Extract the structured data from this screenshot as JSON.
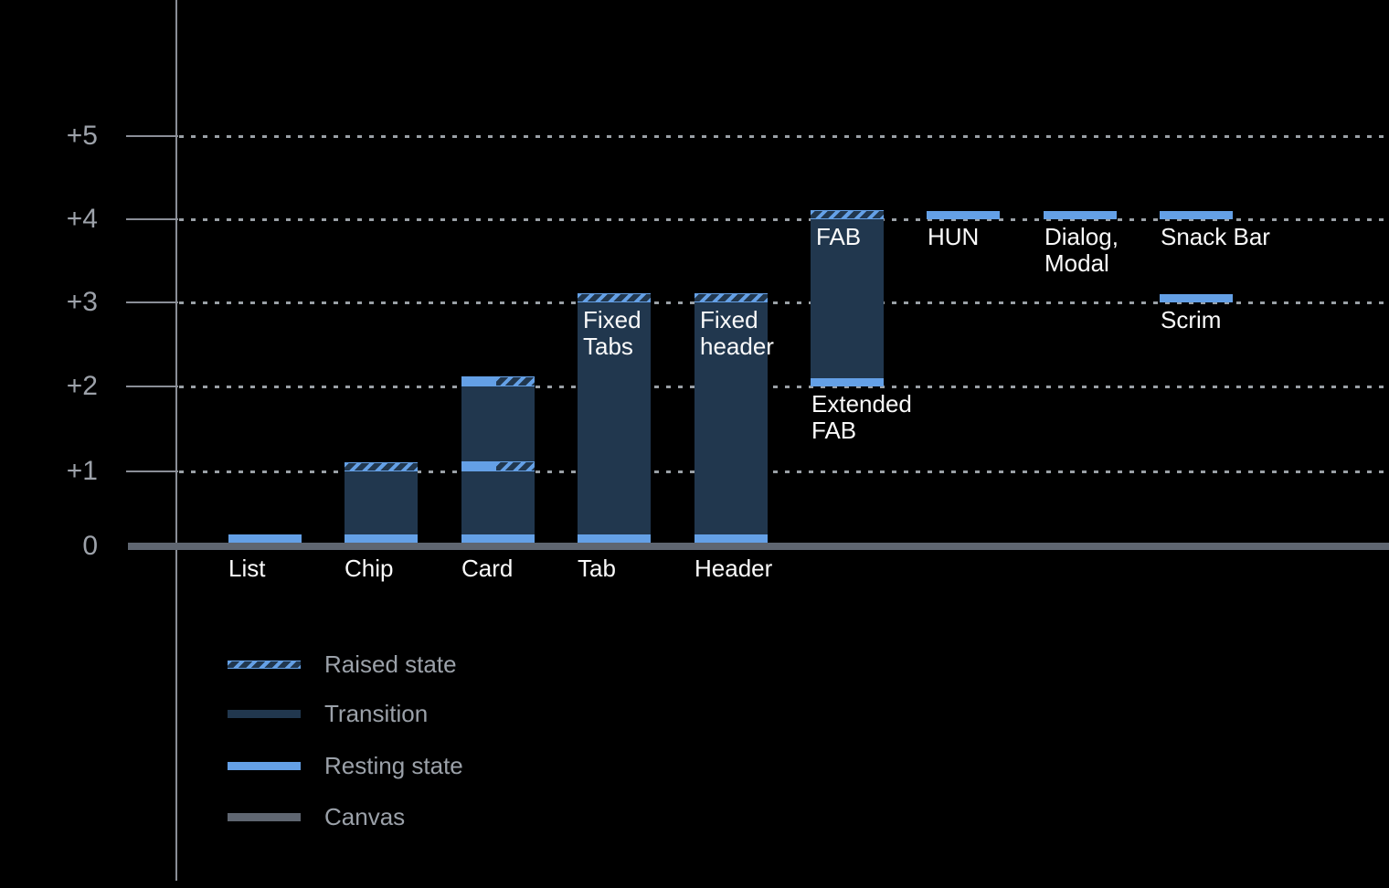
{
  "chart_data": {
    "type": "bar",
    "title": "",
    "description_visible_text_only": "",
    "y_axis": {
      "tick_labels": [
        "+5",
        "+4",
        "+3",
        "+2",
        "+1",
        "0"
      ],
      "ticks": [
        {
          "label": "+5",
          "level": 5
        },
        {
          "label": "+4",
          "level": 4
        },
        {
          "label": "+3",
          "level": 3
        },
        {
          "label": "+2",
          "level": 2
        },
        {
          "label": "+1",
          "level": 1
        },
        {
          "label": "0",
          "level": 0
        }
      ],
      "range": [
        0,
        5.5
      ],
      "grid": "dotted horizontal lines at levels 1-5, solid thick canvas line at 0"
    },
    "categories": [
      "List",
      "Chip",
      "Card",
      "Tab",
      "Header",
      "FAB",
      "HUN",
      "Dialog, Modal",
      "Snack Bar",
      "Scrim"
    ],
    "bars": [
      {
        "name": "List",
        "col": 0,
        "resting": 0,
        "labels": [
          {
            "place": "axis",
            "lines": [
              "List"
            ]
          }
        ]
      },
      {
        "name": "Chip",
        "col": 1,
        "resting": 0,
        "transition": [
          0,
          1
        ],
        "raised": 1,
        "labels": [
          {
            "place": "axis",
            "lines": [
              "Chip"
            ]
          }
        ]
      },
      {
        "name": "Card",
        "col": 2,
        "resting": 0,
        "transition": [
          0,
          2
        ],
        "split_bands": [
          1,
          2
        ],
        "labels": [
          {
            "place": "axis",
            "lines": [
              "Card"
            ]
          }
        ]
      },
      {
        "name": "Tab",
        "col": 3,
        "resting": 0,
        "transition": [
          0,
          3
        ],
        "raised": 3,
        "labels": [
          {
            "place": "inside",
            "level": 3,
            "lines": [
              "Fixed",
              "Tabs"
            ]
          },
          {
            "place": "axis",
            "lines": [
              "Tab"
            ]
          }
        ]
      },
      {
        "name": "Header",
        "col": 4,
        "resting": 0,
        "transition": [
          0,
          3
        ],
        "raised": 3,
        "labels": [
          {
            "place": "inside",
            "level": 3,
            "lines": [
              "Fixed",
              "header"
            ]
          },
          {
            "place": "axis",
            "lines": [
              "Header"
            ]
          }
        ]
      },
      {
        "name": "FAB",
        "col": 5,
        "resting": 2,
        "transition": [
          2,
          4
        ],
        "raised": 4,
        "labels": [
          {
            "place": "inside",
            "level": 4,
            "lines": [
              "FAB"
            ]
          },
          {
            "place": "below",
            "level": 2,
            "lines": [
              "Extended",
              "FAB"
            ]
          }
        ]
      },
      {
        "name": "HUN",
        "col": 6,
        "resting": 4,
        "labels": [
          {
            "place": "below",
            "level": 4,
            "lines": [
              "HUN"
            ]
          }
        ]
      },
      {
        "name": "Dialog, Modal",
        "col": 7,
        "resting": 4,
        "labels": [
          {
            "place": "below",
            "level": 4,
            "lines": [
              "Dialog,",
              "Modal"
            ]
          }
        ]
      },
      {
        "name": "Snack Bar",
        "col": 8,
        "resting": 4,
        "labels": [
          {
            "place": "below",
            "level": 4,
            "lines": [
              "Snack Bar"
            ]
          }
        ]
      },
      {
        "name": "Scrim",
        "col": 8,
        "resting": 3,
        "labels": [
          {
            "place": "below",
            "level": 3,
            "lines": [
              "Scrim"
            ]
          }
        ]
      }
    ],
    "legend": {
      "position": "bottom-left",
      "items": [
        {
          "type": "raised",
          "label": "Raised state"
        },
        {
          "type": "transition",
          "label": "Transition"
        },
        {
          "type": "resting",
          "label": "Resting state"
        },
        {
          "type": "canvas",
          "label": "Canvas"
        }
      ]
    },
    "colors": {
      "background": "#000000",
      "transition": "#21374E",
      "resting": "#64A0E6",
      "canvas": "#5F6671",
      "axis": "#8A8E97",
      "grid": "#9AA0A6",
      "axis_label": "#9DA2AA",
      "legend_label": "#9BA1A9",
      "bar_label": "#FAFAFA"
    }
  }
}
